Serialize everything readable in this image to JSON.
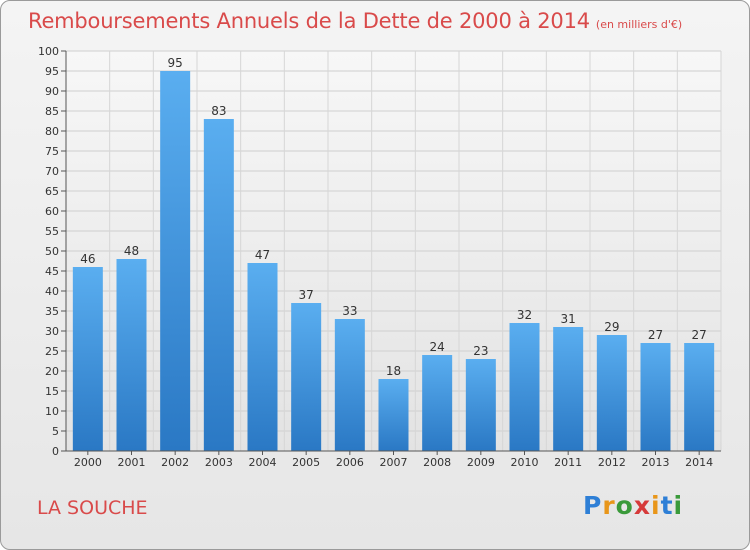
{
  "header": {
    "title": "Remboursements Annuels de la Dette de 2000 à 2014",
    "unit": "(en milliers d'€)"
  },
  "footer": {
    "commune": "LA SOUCHE",
    "logo": "Proxiti"
  },
  "colors": {
    "title": "#d94a4a",
    "bar_light": "#5aaef0",
    "bar_dark": "#2a78c4"
  },
  "chart_data": {
    "type": "bar",
    "title": "Remboursements Annuels de la Dette de 2000 à 2014",
    "xlabel": "",
    "ylabel": "",
    "categories": [
      "2000",
      "2001",
      "2002",
      "2003",
      "2004",
      "2005",
      "2006",
      "2007",
      "2008",
      "2009",
      "2010",
      "2011",
      "2012",
      "2013",
      "2014"
    ],
    "values": [
      46,
      48,
      95,
      83,
      47,
      37,
      33,
      18,
      24,
      23,
      32,
      31,
      29,
      27,
      27
    ],
    "ylim": [
      0,
      100
    ],
    "yticks": [
      0,
      5,
      10,
      15,
      20,
      25,
      30,
      35,
      40,
      45,
      50,
      55,
      60,
      65,
      70,
      75,
      80,
      85,
      90,
      95,
      100
    ],
    "grid": true
  }
}
